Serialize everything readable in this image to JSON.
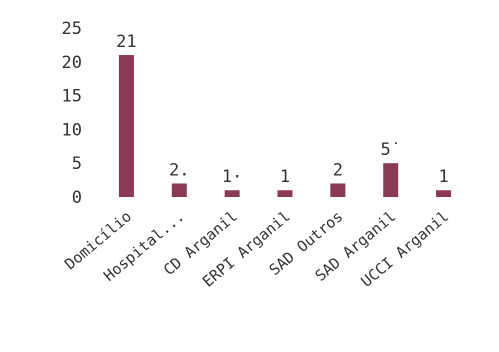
{
  "chart_data": {
    "type": "bar",
    "categories": [
      "Domicílio",
      "Hospital...",
      "CD Arganil",
      "ERPI Arganil",
      "SAD Outros",
      "SAD Arganil",
      "UCCI Arganil"
    ],
    "values": [
      21,
      2,
      1,
      1,
      2,
      5,
      1
    ],
    "data_labels": [
      "21",
      "2.",
      "1·",
      "1",
      "2",
      "5˙",
      "1"
    ],
    "ylim": [
      0,
      25
    ],
    "yticks": [
      0,
      5,
      10,
      15,
      20,
      25
    ],
    "grid": false,
    "legend": "none",
    "colors": {
      "bar": "#8a3a55",
      "text": "#333333"
    }
  }
}
